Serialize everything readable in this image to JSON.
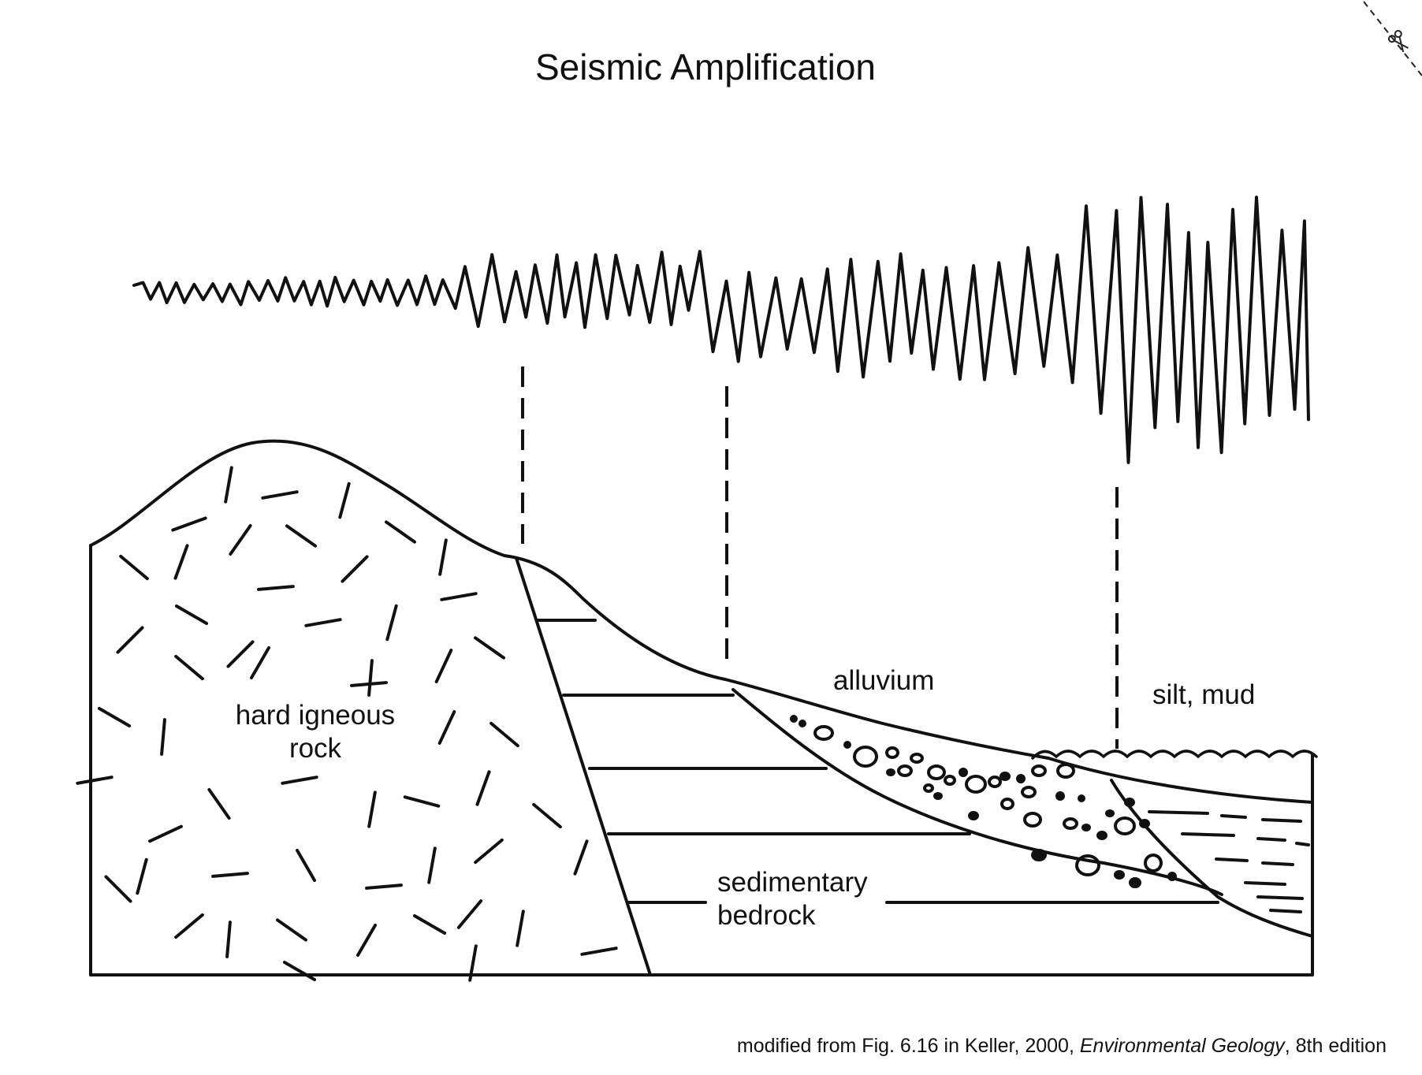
{
  "title": "Seismic Amplification",
  "labels": {
    "igneous_line1": "hard igneous",
    "igneous_line2": "rock",
    "alluvium": "alluvium",
    "silt": "silt, mud",
    "sedimentary_line1": "sedimentary",
    "sedimentary_line2": "bedrock"
  },
  "caption": {
    "prefix": "modified from Fig. 6.16 in Keller, 2000, ",
    "book": "Environmental Geology",
    "suffix": ", 8th edition"
  },
  "icons": {
    "cut_mark": "scissors-icon"
  },
  "colors": {
    "ink": "#111111",
    "background": "#ffffff"
  }
}
